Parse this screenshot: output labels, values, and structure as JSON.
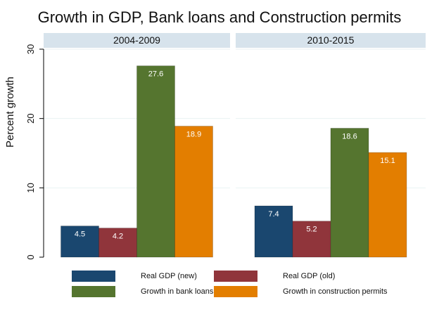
{
  "chart_data": {
    "type": "bar",
    "title": "Growth in GDP, Bank loans and Construction permits",
    "ylabel": "Percent growth",
    "xlabel": "",
    "ylim": [
      0,
      30
    ],
    "yticks": [
      "0",
      "10",
      "20",
      "30"
    ],
    "legend_position": "bottom",
    "grid": true,
    "series": [
      {
        "name": "Real GDP (new)",
        "color": "#1a476f"
      },
      {
        "name": "Real GDP (old)",
        "color": "#90353b"
      },
      {
        "name": "Growth in bank loans",
        "color": "#55752f"
      },
      {
        "name": "Growth in construction permits",
        "color": "#e37e00"
      }
    ],
    "panels": [
      {
        "label": "2004-2009",
        "values": [
          4.5,
          4.2,
          27.6,
          18.9
        ],
        "value_labels": [
          "4.5",
          "4.2",
          "27.6",
          "18.9"
        ]
      },
      {
        "label": "2010-2015",
        "values": [
          7.4,
          5.2,
          18.6,
          15.1
        ],
        "value_labels": [
          "7.4",
          "5.2",
          "18.6",
          "15.1"
        ]
      }
    ]
  }
}
